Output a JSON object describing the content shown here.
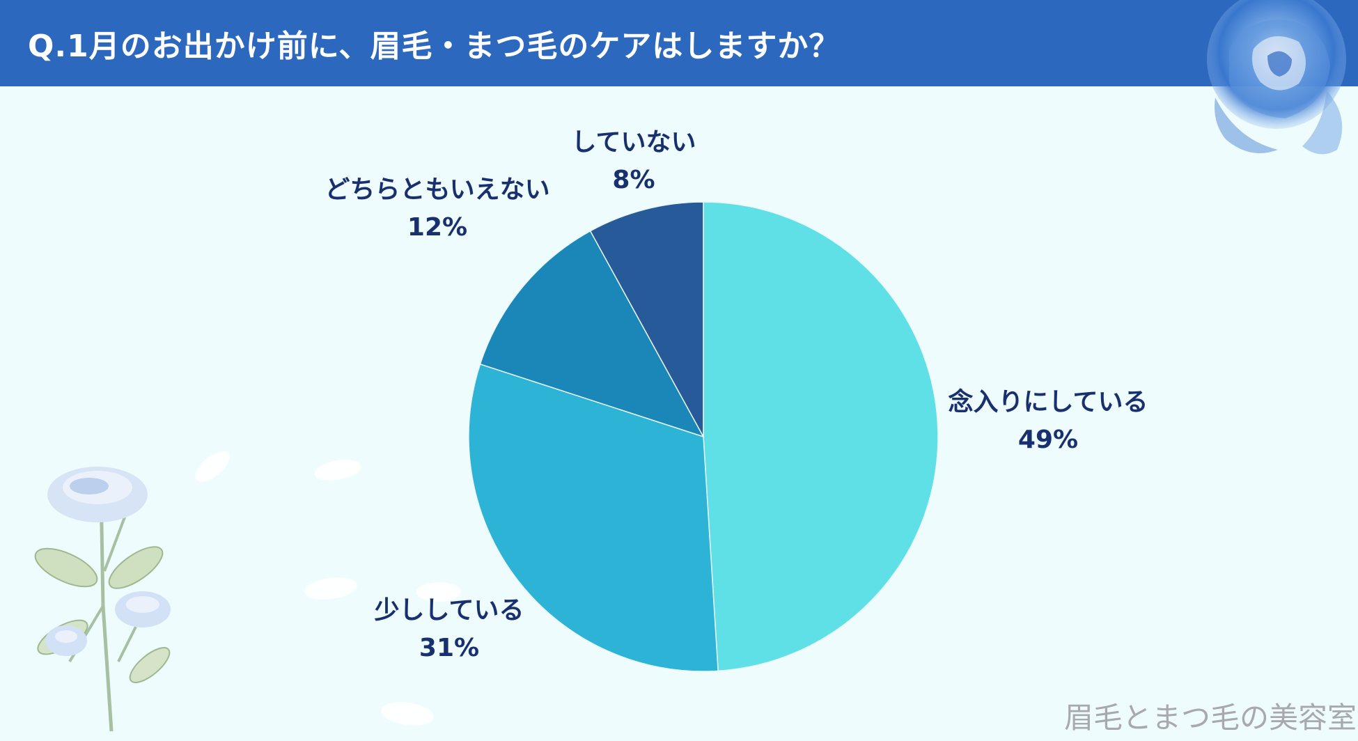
{
  "header": {
    "title": "Q.1月のお出かけ前に、眉毛・まつ毛のケアはしますか？"
  },
  "chart_data": {
    "type": "pie",
    "title": "Q.1月のお出かけ前に、眉毛・まつ毛のケアはしますか？",
    "slices": [
      {
        "label": "念入りにしている",
        "value": 49,
        "display": "49%",
        "color": "#5ee0e6"
      },
      {
        "label": "少ししている",
        "value": 31,
        "display": "31%",
        "color": "#2db3d5"
      },
      {
        "label": "どちらともいえない",
        "value": 12,
        "display": "12%",
        "color": "#1a87b8"
      },
      {
        "label": "していない",
        "value": 8,
        "display": "8%",
        "color": "#265a98"
      }
    ]
  },
  "decor": {
    "top_right": "blue-rose-icon",
    "bottom_left": "blue-rose-stem-icon"
  },
  "watermark": "眉毛とまつ毛の美容室",
  "colors": {
    "header_bg": "#2d68bf",
    "page_bg": "#effcfd",
    "label_text": "#19306e"
  }
}
